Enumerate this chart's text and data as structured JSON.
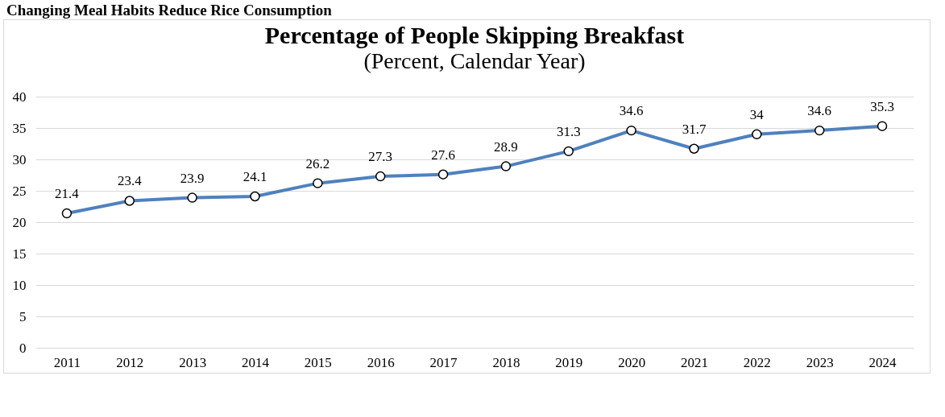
{
  "chart_data": {
    "type": "line",
    "title": "Percentage of People Skipping Breakfast",
    "subtitle": "(Percent, Calendar Year)",
    "annotations": [
      "Changing Meal Habits Reduce Rice Consumption"
    ],
    "categories": [
      "2011",
      "2012",
      "2013",
      "2014",
      "2015",
      "2016",
      "2017",
      "2018",
      "2019",
      "2020",
      "2021",
      "2022",
      "2023",
      "2024"
    ],
    "series": [
      {
        "color": "#4f81bd",
        "values": [
          21.4,
          23.4,
          23.9,
          24.1,
          26.2,
          27.3,
          27.6,
          28.9,
          31.3,
          34.6,
          31.7,
          34,
          34.6,
          35.3
        ]
      }
    ],
    "ylim": [
      0,
      40
    ],
    "yticks": [
      0,
      5,
      10,
      15,
      20,
      25,
      30,
      35,
      40
    ],
    "grid": "y",
    "marker": "circle",
    "line_style": "solid",
    "data_labels": true
  }
}
